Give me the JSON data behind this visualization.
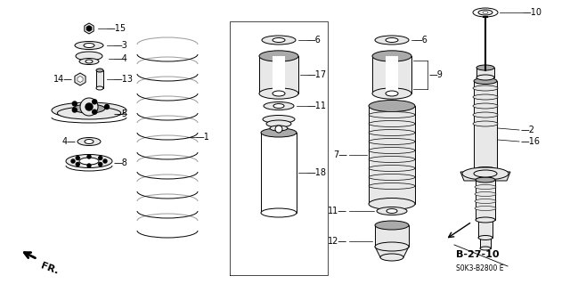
{
  "bg_color": "#ffffff",
  "line_color": "#000000",
  "part_fill": "#e8e8e8",
  "dark_fill": "#aaaaaa",
  "diagram_code": "B-27-10",
  "ref_code": "S0K3-B2800 E",
  "fr_label": "FR."
}
